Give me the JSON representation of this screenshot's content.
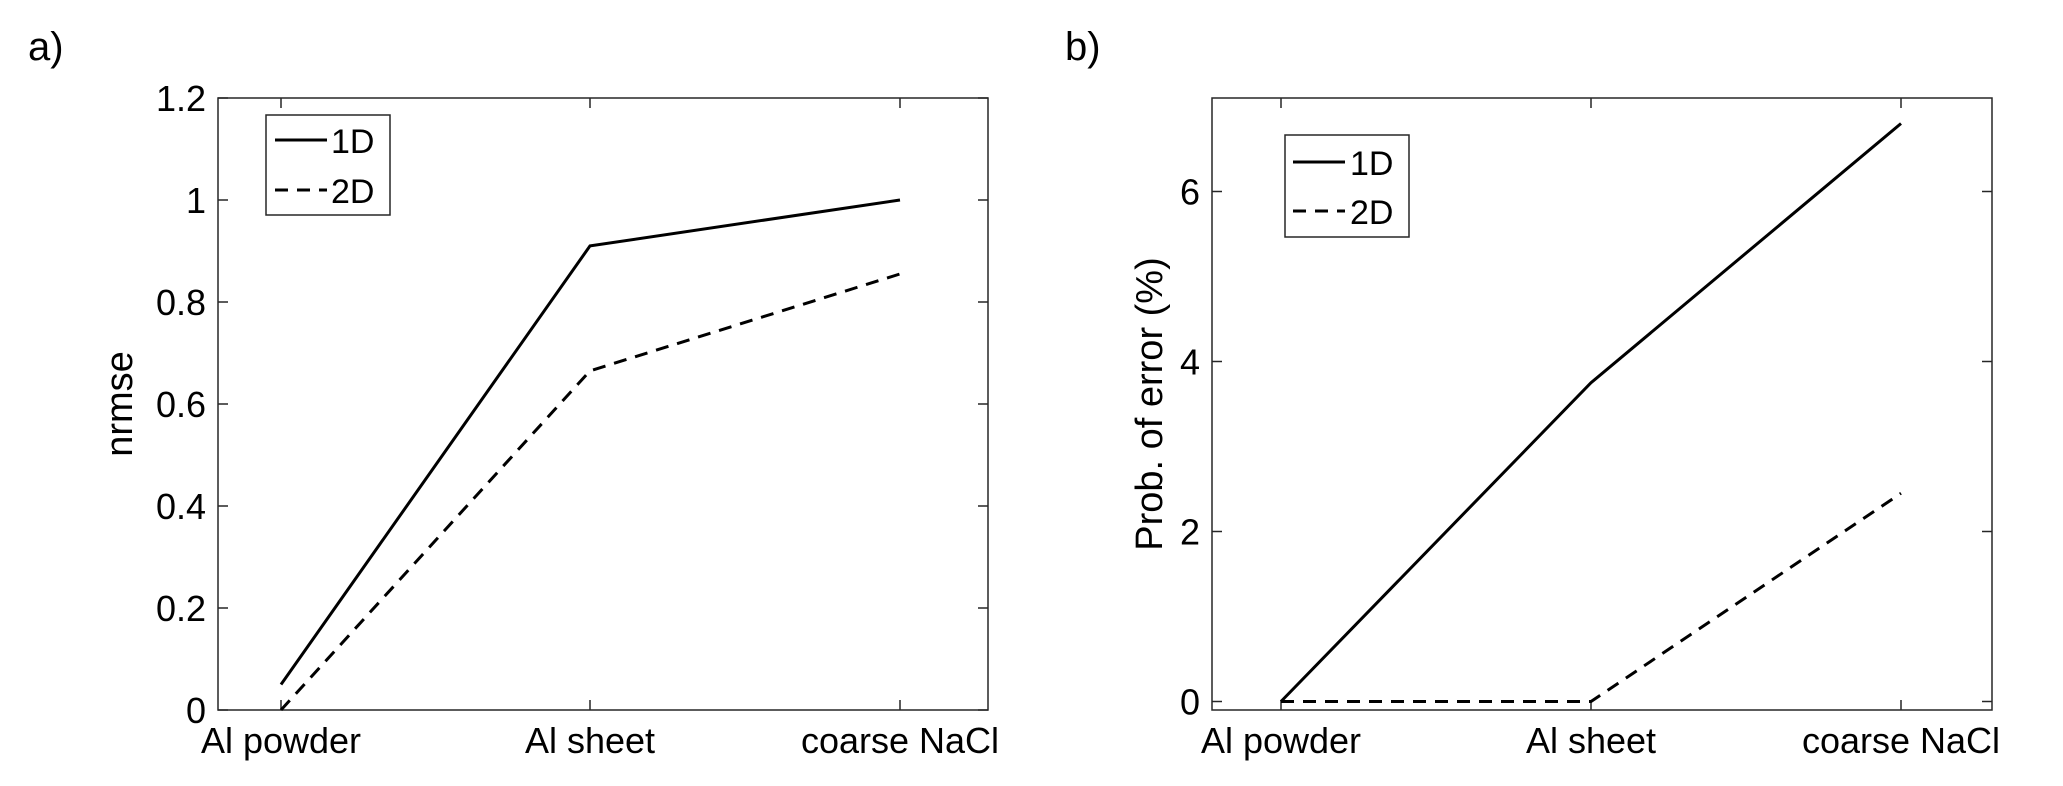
{
  "chart_data": [
    {
      "type": "line",
      "panel_label": "a)",
      "categories": [
        "Al powder",
        "Al sheet",
        "coarse NaCl"
      ],
      "ylabel": "nrmse",
      "ylim": [
        0,
        1.2
      ],
      "yticks": [
        0,
        0.2,
        0.4,
        0.6,
        0.8,
        1,
        1.2
      ],
      "ytick_labels": [
        "0",
        "0.2",
        "0.4",
        "0.6",
        "0.8",
        "1",
        "1.2"
      ],
      "legend_position": "top-left",
      "series": [
        {
          "name": "1D",
          "values": [
            0.05,
            0.91,
            1.0
          ],
          "style": "solid",
          "color": "#000000"
        },
        {
          "name": "2D",
          "values": [
            0.0,
            0.665,
            0.855
          ],
          "style": "dashed",
          "color": "#000000"
        }
      ]
    },
    {
      "type": "line",
      "panel_label": "b)",
      "categories": [
        "Al powder",
        "Al sheet",
        "coarse NaCl"
      ],
      "ylabel": "Prob. of error (%)",
      "ylim": [
        -0.1,
        7.1
      ],
      "yticks": [
        0,
        2,
        4,
        6
      ],
      "ytick_labels": [
        "0",
        "2",
        "4",
        "6"
      ],
      "legend_position": "top-left",
      "series": [
        {
          "name": "1D",
          "values": [
            0.0,
            3.75,
            6.8
          ],
          "style": "solid",
          "color": "#000000"
        },
        {
          "name": "2D",
          "values": [
            0.0,
            0.0,
            2.45
          ],
          "style": "dashed",
          "color": "#000000"
        }
      ]
    }
  ]
}
